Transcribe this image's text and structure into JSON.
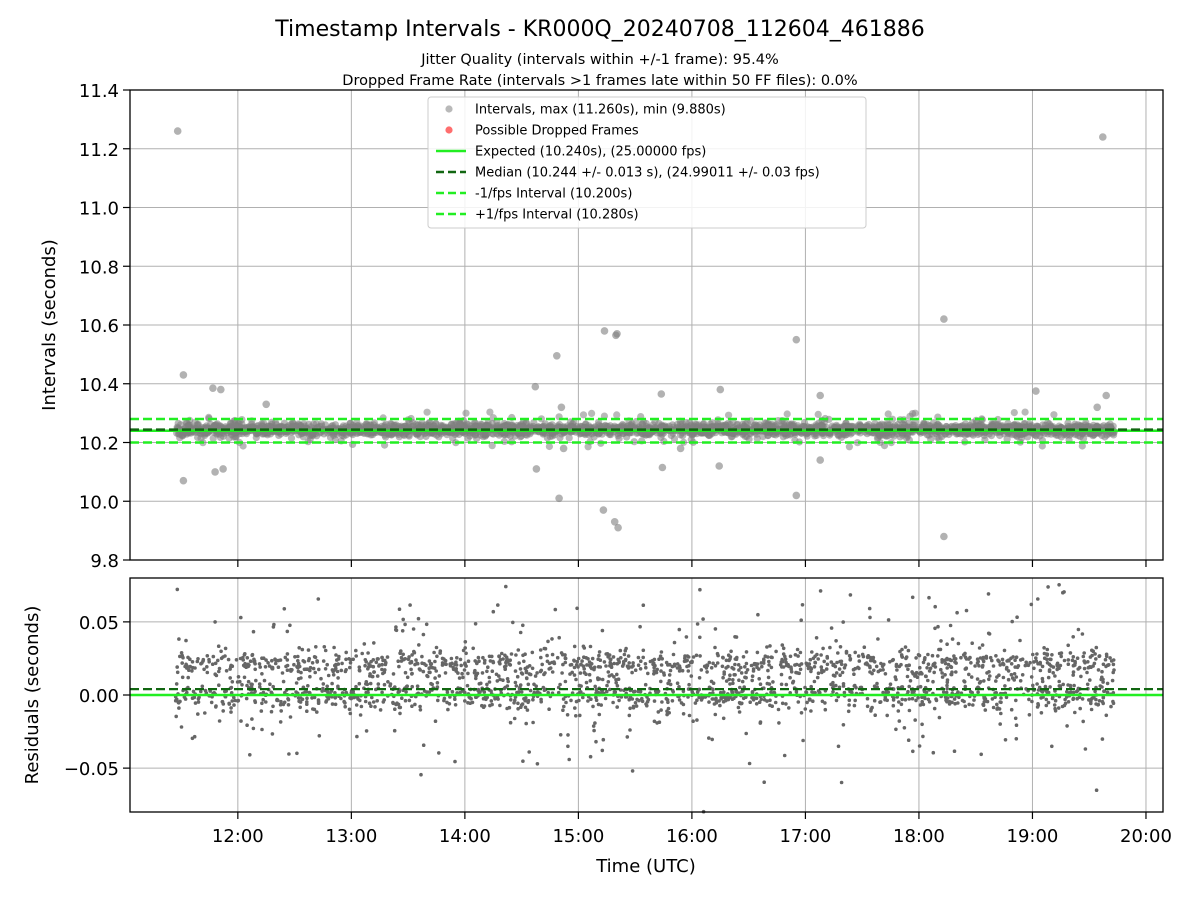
{
  "figure": {
    "title": "Timestamp Intervals - KR000Q_20240708_112604_461886",
    "subtitle_1": "Jitter Quality (intervals within +/-1 frame): 95.4%",
    "subtitle_2": "Dropped Frame Rate (intervals >1 frames late within 50 FF files): 0.0%"
  },
  "colors": {
    "points": "#7f7f7f",
    "dropped": "#ff5555",
    "expected": "#22ee22",
    "median": "#116611",
    "fps_bounds": "#22ee22",
    "grid": "#b0b0b0"
  },
  "chart_data": [
    {
      "type": "scatter",
      "panel": "intervals",
      "ylabel": "Intervals (seconds)",
      "ylim": [
        9.8,
        11.4
      ],
      "yticks": [
        "9.8",
        "10.0",
        "10.2",
        "10.4",
        "10.6",
        "10.8",
        "11.0",
        "11.2",
        "11.4"
      ],
      "ytick_values": [
        9.8,
        10.0,
        10.2,
        10.4,
        10.6,
        10.8,
        11.0,
        11.2,
        11.4
      ],
      "xlim_hours": [
        11.05,
        20.15
      ],
      "xtick_values": [
        12,
        13,
        14,
        15,
        16,
        17,
        18,
        19,
        20
      ],
      "grid": true,
      "legend_placement": "top-center",
      "legend": [
        {
          "label": "Intervals, max (11.260s), min (9.880s)",
          "kind": "dot",
          "color_key": "points"
        },
        {
          "label": "Possible Dropped Frames",
          "kind": "dot",
          "color_key": "dropped"
        },
        {
          "label": "Expected (10.240s), (25.00000 fps)",
          "kind": "solid",
          "color_key": "expected"
        },
        {
          "label": "Median (10.244 +/- 0.013 s), (24.99011 +/- 0.03 fps)",
          "kind": "dashed",
          "color_key": "median"
        },
        {
          "label": "-1/fps Interval (10.200s)",
          "kind": "dashed",
          "color_key": "fps_bounds"
        },
        {
          "label": "+1/fps Interval (10.280s)",
          "kind": "dashed",
          "color_key": "fps_bounds"
        }
      ],
      "reference_lines": {
        "expected": 10.24,
        "median": 10.244,
        "minus_fps": 10.2,
        "plus_fps": 10.28
      },
      "series": [
        {
          "name": "Intervals, max (11.260s), min (9.880s)",
          "dense_band": {
            "x_start_hours": 11.45,
            "x_end_hours": 19.72,
            "center": 10.244,
            "spread": 0.02,
            "count": 2600
          },
          "outliers": [
            [
              11.47,
              11.26
            ],
            [
              11.52,
              10.43
            ],
            [
              11.52,
              10.07
            ],
            [
              11.78,
              10.385
            ],
            [
              11.85,
              10.38
            ],
            [
              11.8,
              10.1
            ],
            [
              11.87,
              10.11
            ],
            [
              12.25,
              10.33
            ],
            [
              14.81,
              10.495
            ],
            [
              14.62,
              10.39
            ],
            [
              14.63,
              10.11
            ],
            [
              14.83,
              10.01
            ],
            [
              15.23,
              10.58
            ],
            [
              15.33,
              10.565
            ],
            [
              15.34,
              10.57
            ],
            [
              15.22,
              9.97
            ],
            [
              15.32,
              9.93
            ],
            [
              15.35,
              9.91
            ],
            [
              15.73,
              10.365
            ],
            [
              15.74,
              10.115
            ],
            [
              15.9,
              10.18
            ],
            [
              16.25,
              10.38
            ],
            [
              16.24,
              10.12
            ],
            [
              16.92,
              10.55
            ],
            [
              16.92,
              10.02
            ],
            [
              17.13,
              10.36
            ],
            [
              17.13,
              10.14
            ],
            [
              18.22,
              10.62
            ],
            [
              18.22,
              9.88
            ],
            [
              19.03,
              10.375
            ],
            [
              19.62,
              11.24
            ],
            [
              19.65,
              10.36
            ],
            [
              19.57,
              10.32
            ],
            [
              14.85,
              10.32
            ],
            [
              14.87,
              10.18
            ]
          ]
        }
      ]
    },
    {
      "type": "scatter",
      "panel": "residuals",
      "xlabel": "Time (UTC)",
      "ylabel": "Residuals (seconds)",
      "ylim": [
        -0.08,
        0.08
      ],
      "yticks": [
        "−0.05",
        "0.00",
        "0.05"
      ],
      "ytick_values": [
        -0.05,
        0.0,
        0.05
      ],
      "xlim_hours": [
        11.05,
        20.15
      ],
      "xticks": [
        "12:00",
        "13:00",
        "14:00",
        "15:00",
        "16:00",
        "17:00",
        "18:00",
        "19:00",
        "20:00"
      ],
      "xtick_values": [
        12,
        13,
        14,
        15,
        16,
        17,
        18,
        19,
        20
      ],
      "grid": true,
      "reference_lines": {
        "expected": 0.0,
        "median": 0.004
      },
      "series": [
        {
          "name": "Residuals",
          "clusters": [
            {
              "center": 0.021,
              "spread": 0.005,
              "count": 900
            },
            {
              "center": 0.0,
              "spread": 0.005,
              "count": 900
            },
            {
              "center": 0.01,
              "spread": 0.03,
              "count": 450
            }
          ],
          "x_start_hours": 11.45,
          "x_end_hours": 19.72
        }
      ]
    }
  ]
}
